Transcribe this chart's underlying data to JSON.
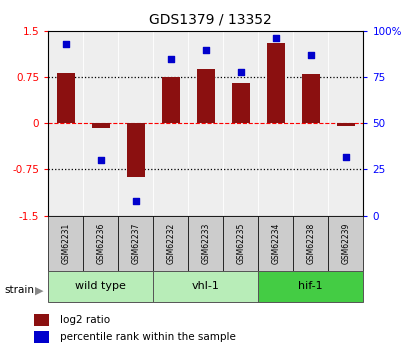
{
  "title": "GDS1379 / 13352",
  "samples": [
    "GSM62231",
    "GSM62236",
    "GSM62237",
    "GSM62232",
    "GSM62233",
    "GSM62235",
    "GSM62234",
    "GSM62238",
    "GSM62239"
  ],
  "log2_ratio": [
    0.82,
    -0.07,
    -0.88,
    0.75,
    0.88,
    0.65,
    1.3,
    0.8,
    -0.04
  ],
  "percentile": [
    93,
    30,
    8,
    85,
    90,
    78,
    96,
    87,
    32
  ],
  "groups": [
    {
      "label": "wild type",
      "start": 0,
      "end": 3,
      "color": "#b8edb8"
    },
    {
      "label": "vhl-1",
      "start": 3,
      "end": 6,
      "color": "#b8edb8"
    },
    {
      "label": "hif-1",
      "start": 6,
      "end": 9,
      "color": "#44cc44"
    }
  ],
  "bar_color": "#8B1010",
  "dot_color": "#0000CC",
  "ylim_left": [
    -1.5,
    1.5
  ],
  "ylim_right": [
    0,
    100
  ],
  "yticks_left": [
    -1.5,
    -0.75,
    0,
    0.75,
    1.5
  ],
  "yticks_right": [
    0,
    25,
    50,
    75,
    100
  ],
  "ytick_labels_left": [
    "-1.5",
    "-0.75",
    "0",
    "0.75",
    "1.5"
  ],
  "ytick_labels_right": [
    "0",
    "25",
    "50",
    "75",
    "100%"
  ],
  "hlines_dotted": [
    0.75,
    -0.75
  ],
  "hline_red_dashed": 0,
  "bar_width": 0.5,
  "bg_color": "#ffffff",
  "plot_bg": "#eeeeee",
  "strain_label": "strain",
  "legend_bar_label": "log2 ratio",
  "legend_dot_label": "percentile rank within the sample",
  "label_box_color": "#cccccc",
  "group_border_color": "#555555"
}
